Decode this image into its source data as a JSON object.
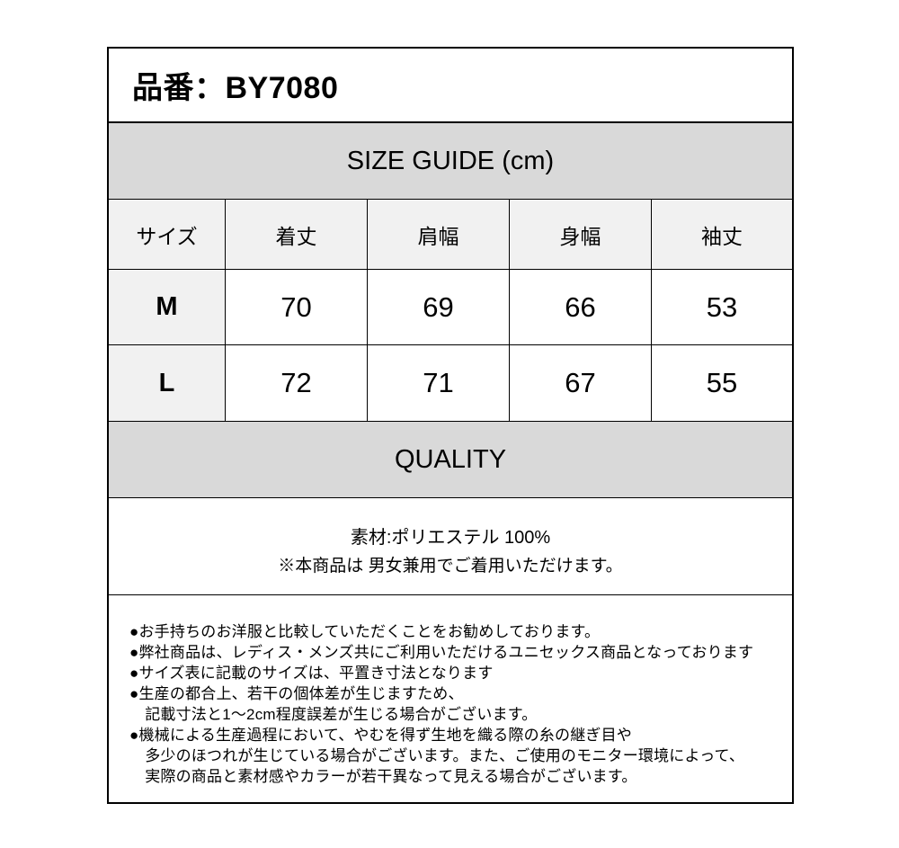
{
  "header": {
    "product_number_label": "品番：BY7080"
  },
  "size_guide": {
    "section_title": "SIZE GUIDE (cm)",
    "table": {
      "columns": [
        "サイズ",
        "着丈",
        "肩幅",
        "身幅",
        "袖丈"
      ],
      "rows": [
        {
          "size": "M",
          "values": [
            "70",
            "69",
            "66",
            "53"
          ]
        },
        {
          "size": "L",
          "values": [
            "72",
            "71",
            "67",
            "55"
          ]
        }
      ]
    }
  },
  "quality": {
    "section_title": "QUALITY",
    "material_line": "素材:ポリエステル 100%",
    "unisex_note": "※本商品は 男女兼用でご着用いただけます。"
  },
  "notes": {
    "lines": [
      "●お手持ちのお洋服と比較していただくことをお勧めしております。",
      "●弊社商品は、レディス・メンズ共にご利用いただけるユニセックス商品となっております",
      "●サイズ表に記載のサイズは、平置き寸法となります",
      "●生産の都合上、若干の個体差が生じますため、",
      "　記載寸法と1～2cm程度誤差が生じる場合がございます。",
      "●機械による生産過程において、やむを得ず生地を織る際の糸の継ぎ目や",
      "　多少のほつれが生じている場合がございます。また、ご使用のモニター環境によって、",
      "　実際の商品と素材感やカラーが若干異なって見える場合がございます。"
    ]
  },
  "colors": {
    "section_bar_bg": "#d9d9d9",
    "shaded_cell_bg": "#f1f1f1",
    "border": "#000000",
    "text": "#000000",
    "page_bg": "#ffffff"
  }
}
